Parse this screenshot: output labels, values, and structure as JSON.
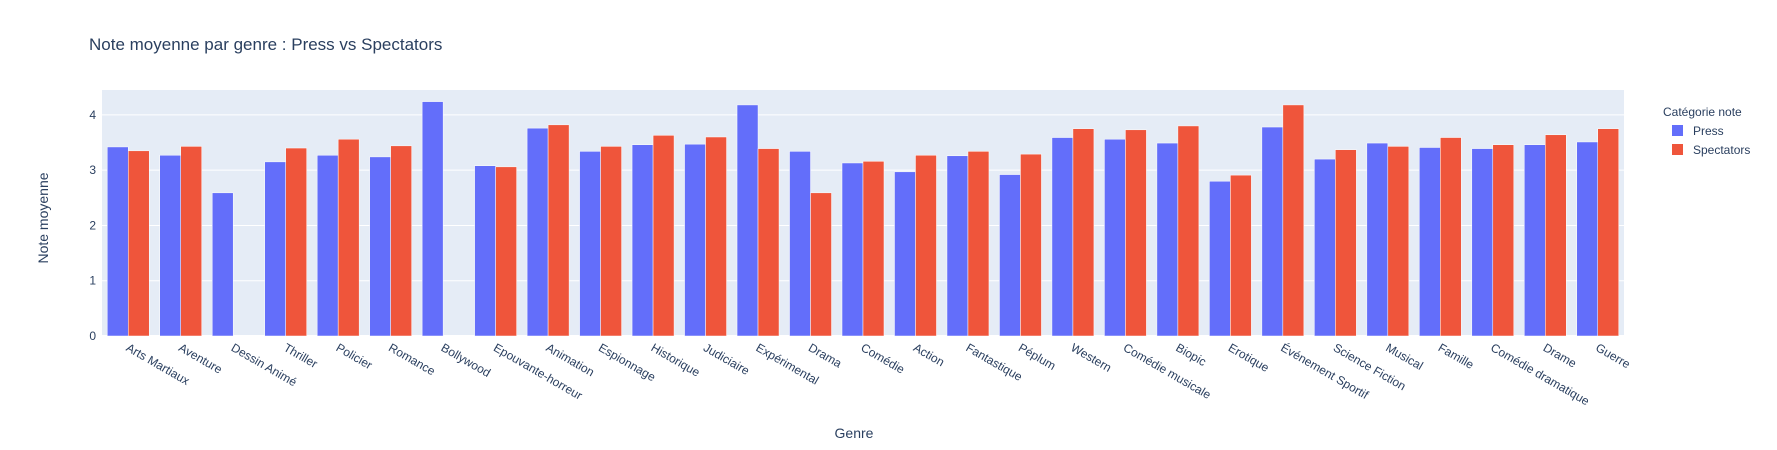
{
  "chart_data": {
    "type": "bar",
    "title": "Note moyenne par genre : Press vs Spectators",
    "xlabel": "Genre",
    "ylabel": "Note moyenne",
    "ylim": [
      0,
      4.45
    ],
    "yticks": [
      0,
      1,
      2,
      3,
      4
    ],
    "grid": true,
    "legend": {
      "title": "Catégorie note",
      "placement": "top-right"
    },
    "categories": [
      "Arts Martiaux",
      "Aventure",
      "Dessin Animé",
      "Thriller",
      "Policier",
      "Romance",
      "Bollywood",
      "Epouvante-horreur",
      "Animation",
      "Espionnage",
      "Historique",
      "Judiciaire",
      "Expérimental",
      "Drama",
      "Comédie",
      "Action",
      "Fantastique",
      "Péplum",
      "Western",
      "Comédie musicale",
      "Biopic",
      "Erotique",
      "Événement Sportif",
      "Science Fiction",
      "Musical",
      "Famille",
      "Comédie dramatique",
      "Drame",
      "Guerre"
    ],
    "series": [
      {
        "name": "Press",
        "color": "#636efa",
        "values": [
          3.42,
          3.27,
          2.59,
          3.15,
          3.27,
          3.24,
          4.24,
          3.08,
          3.76,
          3.34,
          3.46,
          3.47,
          4.18,
          3.34,
          3.13,
          2.97,
          3.26,
          2.92,
          3.59,
          3.56,
          3.49,
          2.8,
          3.78,
          3.2,
          3.49,
          3.41,
          3.39,
          3.46,
          3.51
        ]
      },
      {
        "name": "Spectators",
        "color": "#ef553b",
        "values": [
          3.35,
          3.43,
          null,
          3.4,
          3.56,
          3.44,
          null,
          3.06,
          3.82,
          3.43,
          3.63,
          3.6,
          3.39,
          2.59,
          3.16,
          3.27,
          3.34,
          3.29,
          3.75,
          3.73,
          3.8,
          2.91,
          4.18,
          3.37,
          3.43,
          3.59,
          3.46,
          3.64,
          3.75
        ]
      }
    ]
  }
}
